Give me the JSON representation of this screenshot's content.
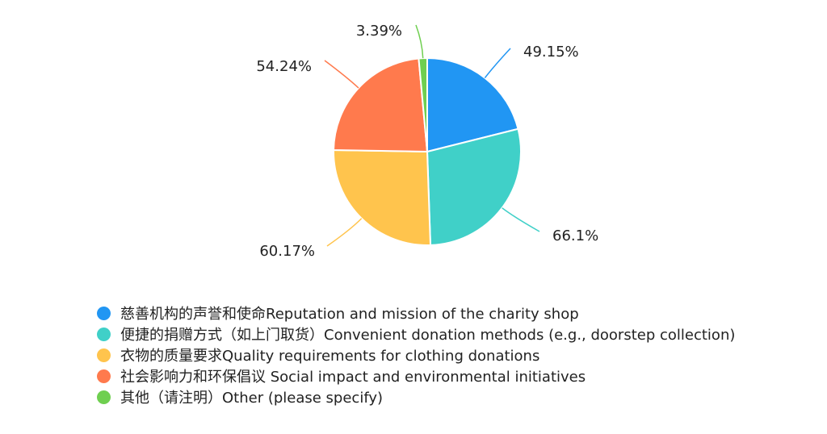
{
  "chart_data": {
    "type": "pie",
    "title": "",
    "slices": [
      {
        "label": "慈善机构的声誉和使命Reputation and mission of the charity shop",
        "value": 49.15,
        "value_label": "49.15%",
        "color": "#2196f3"
      },
      {
        "label": "便捷的捐赠方式（如上门取货）Convenient donation methods (e.g., doorstep collection)",
        "value": 66.1,
        "value_label": "66.1%",
        "color": "#40d0c8"
      },
      {
        "label": "衣物的质量要求Quality requirements for clothing donations",
        "value": 60.17,
        "value_label": "60.17%",
        "color": "#ffc44d"
      },
      {
        "label": "社会影响力和环保倡议 Social impact and environmental initiatives",
        "value": 54.24,
        "value_label": "54.24%",
        "color": "#ff7a4d"
      },
      {
        "label": "其他（请注明）Other (please specify)",
        "value": 3.39,
        "value_label": "3.39%",
        "color": "#6fcf50"
      }
    ],
    "legend_position": "bottom-left"
  }
}
